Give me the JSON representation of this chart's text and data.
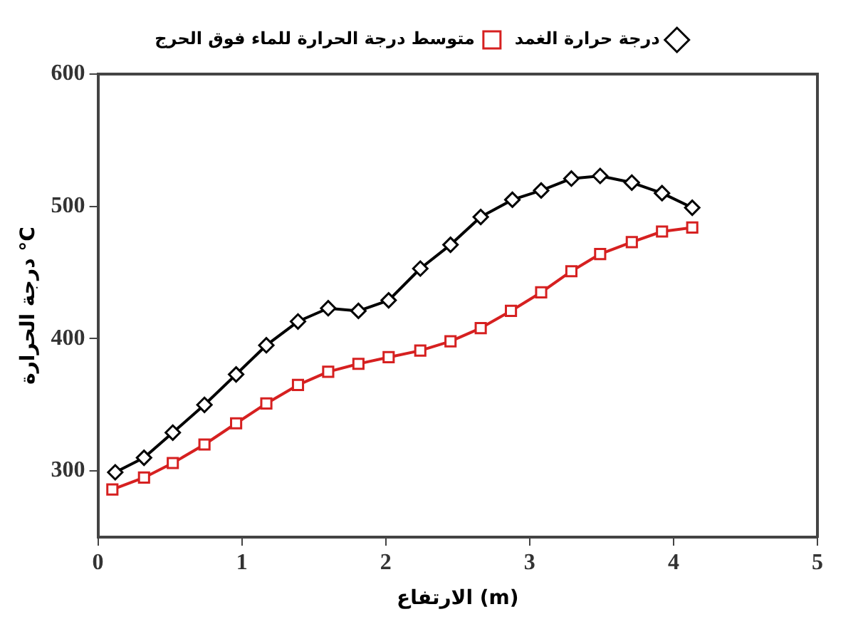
{
  "chart_data": {
    "type": "line",
    "xlabel": "الارتفاع (m)",
    "ylabel": "درجة الحرارة °C",
    "xlim": [
      0,
      5
    ],
    "xticks": [
      0,
      1,
      2,
      3,
      4,
      5
    ],
    "ylim": [
      250,
      600
    ],
    "yticks": [
      300,
      400,
      500,
      600
    ],
    "legend": "top",
    "grid": false,
    "line_style": "solid",
    "series": [
      {
        "name": "درجة حرارة الغمد",
        "color": "#000000",
        "marker": "diamond",
        "x": [
          0.12,
          0.32,
          0.52,
          0.74,
          0.96,
          1.17,
          1.39,
          1.6,
          1.81,
          2.02,
          2.24,
          2.45,
          2.66,
          2.88,
          3.08,
          3.29,
          3.49,
          3.71,
          3.92,
          4.13
        ],
        "values": [
          299,
          310,
          329,
          350,
          373,
          395,
          413,
          423,
          421,
          429,
          453,
          471,
          492,
          505,
          512,
          521,
          523,
          518,
          510,
          499
        ]
      },
      {
        "name": "متوسط درجة الحرارة للماء فوق الحرج",
        "color": "#d62020",
        "marker": "square",
        "x": [
          0.1,
          0.32,
          0.52,
          0.74,
          0.96,
          1.17,
          1.39,
          1.6,
          1.81,
          2.02,
          2.24,
          2.45,
          2.66,
          2.87,
          3.08,
          3.29,
          3.49,
          3.71,
          3.92,
          4.13
        ],
        "values": [
          286,
          295,
          306,
          320,
          336,
          351,
          365,
          375,
          381,
          386,
          391,
          398,
          408,
          421,
          435,
          451,
          464,
          473,
          481,
          484
        ]
      }
    ]
  }
}
